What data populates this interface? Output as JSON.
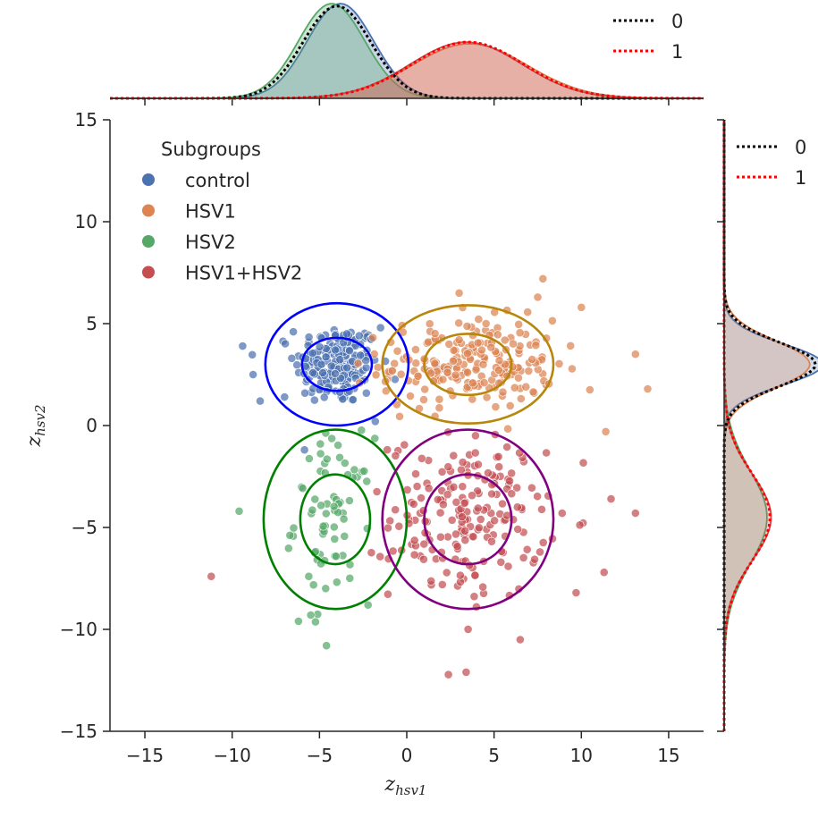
{
  "chart_data": {
    "type": "scatter",
    "xlabel": "z_hsv1",
    "ylabel": "z_hsv2",
    "xlabel_main": "z",
    "xlabel_sub": "hsv1",
    "ylabel_main": "z",
    "ylabel_sub": "hsv2",
    "xlim": [
      -17,
      17
    ],
    "ylim": [
      -15,
      15
    ],
    "xticks": [
      -15,
      -10,
      -5,
      0,
      5,
      10,
      15
    ],
    "yticks": [
      -15,
      -10,
      -5,
      0,
      5,
      10,
      15
    ],
    "grid": false,
    "legend": {
      "title": "Subgroups",
      "placement": "upper-left",
      "entries": [
        {
          "label": "control",
          "color": "#4c72b0"
        },
        {
          "label": "HSV1",
          "color": "#dd8452"
        },
        {
          "label": "HSV2",
          "color": "#55a868"
        },
        {
          "label": "HSV1+HSV2",
          "color": "#c44e52"
        }
      ]
    },
    "series": [
      {
        "name": "control",
        "color": "#4c72b0",
        "center": [
          -4,
          3
        ],
        "spread": [
          1.2,
          1.0
        ],
        "approx_count": 200,
        "outliers": [
          [
            -9.4,
            3.9
          ],
          [
            -8.8,
            2.5
          ],
          [
            -8.4,
            1.2
          ],
          [
            -7.0,
            1.4
          ],
          [
            -1.5,
            4.8
          ],
          [
            -1.8,
            0.2
          ],
          [
            -6.5,
            4.6
          ]
        ]
      },
      {
        "name": "HSV1",
        "color": "#dd8452",
        "center": [
          3.5,
          3
        ],
        "spread": [
          2.5,
          1.1
        ],
        "approx_count": 220,
        "outliers": [
          [
            7.8,
            7.2
          ],
          [
            13.8,
            1.8
          ],
          [
            13.1,
            3.5
          ],
          [
            11.4,
            -0.3
          ],
          [
            3.0,
            6.5
          ],
          [
            7.5,
            6.3
          ],
          [
            10.0,
            5.8
          ]
        ]
      },
      {
        "name": "HSV2",
        "color": "#55a868",
        "center": [
          -4.2,
          -4.6
        ],
        "spread": [
          1.1,
          2.0
        ],
        "approx_count": 70,
        "outliers": [
          [
            -9.6,
            -4.2
          ],
          [
            -6.2,
            -9.6
          ],
          [
            -4.6,
            -10.8
          ],
          [
            -5.5,
            -9.3
          ]
        ]
      },
      {
        "name": "HSV1+HSV2",
        "color": "#c44e52",
        "center": [
          3.5,
          -4.5
        ],
        "spread": [
          2.2,
          2.0
        ],
        "approx_count": 200,
        "outliers": [
          [
            -11.2,
            -7.4
          ],
          [
            3.4,
            -12.1
          ],
          [
            13.1,
            -4.3
          ],
          [
            11.7,
            -3.6
          ],
          [
            11.3,
            -7.2
          ],
          [
            9.7,
            -8.2
          ]
        ]
      }
    ],
    "ellipses": [
      {
        "group": "control",
        "color": "#0000ff",
        "center": [
          -4,
          3
        ],
        "inner_radii": [
          2,
          1.3
        ],
        "outer_radii": [
          4.1,
          3
        ]
      },
      {
        "group": "HSV1",
        "color": "#b8860b",
        "center": [
          3.5,
          3
        ],
        "inner_radii": [
          2.5,
          1.5
        ],
        "outer_radii": [
          4.9,
          2.9
        ]
      },
      {
        "group": "HSV2",
        "color": "#008000",
        "center": [
          -4.1,
          -4.6
        ],
        "inner_radii": [
          2,
          2.2
        ],
        "outer_radii": [
          4.1,
          4.4
        ]
      },
      {
        "group": "HSV1+HSV2",
        "color": "#800080",
        "center": [
          3.5,
          -4.6
        ],
        "inner_radii": [
          2.5,
          2.2
        ],
        "outer_radii": [
          4.9,
          4.4
        ]
      }
    ],
    "marginal_x": {
      "legend": [
        {
          "label": "0",
          "color": "#000000",
          "style": "dotted"
        },
        {
          "label": "1",
          "color": "#ff0000",
          "style": "dotted"
        }
      ],
      "kde": [
        {
          "group": "control",
          "color": "#4c72b0",
          "mean": -3.8,
          "sd": 1.9
        },
        {
          "group": "HSV2",
          "color": "#55a868",
          "mean": -4.3,
          "sd": 1.9
        },
        {
          "group": "HSV1",
          "color": "#dd8452",
          "mean": 3.6,
          "sd": 3.3
        },
        {
          "group": "HSV1+HSV2",
          "color": "#c44e52",
          "mean": 3.4,
          "sd": 3.2
        }
      ],
      "aggregate": [
        {
          "label": "0",
          "color": "#000000",
          "mean": -4.0,
          "sd": 1.95
        },
        {
          "label": "1",
          "color": "#ff0000",
          "mean": 3.5,
          "sd": 3.2
        }
      ]
    },
    "marginal_y": {
      "legend": [
        {
          "label": "0",
          "color": "#000000",
          "style": "dotted"
        },
        {
          "label": "1",
          "color": "#ff0000",
          "style": "dotted"
        }
      ],
      "kde": [
        {
          "group": "control",
          "color": "#4c72b0",
          "mean": 3.0,
          "sd": 1.0
        },
        {
          "group": "HSV1",
          "color": "#dd8452",
          "mean": 3.0,
          "sd": 1.15
        },
        {
          "group": "HSV2",
          "color": "#55a868",
          "mean": -4.5,
          "sd": 2.3
        },
        {
          "group": "HSV1+HSV2",
          "color": "#c44e52",
          "mean": -4.5,
          "sd": 2.1
        }
      ],
      "aggregate": [
        {
          "label": "0",
          "color": "#000000",
          "mean": 3.0,
          "sd": 1.08
        },
        {
          "label": "1",
          "color": "#ff0000",
          "mean": -4.5,
          "sd": 2.15
        }
      ]
    }
  }
}
